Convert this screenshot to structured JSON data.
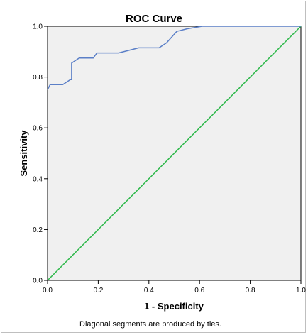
{
  "chart_data": {
    "type": "line",
    "title": "ROC Curve",
    "xlabel": "1 - Specificity",
    "ylabel": "Sensitivity",
    "xlim": [
      0.0,
      1.0
    ],
    "ylim": [
      0.0,
      1.0
    ],
    "x_ticks": [
      "0.0",
      "0.2",
      "0.4",
      "0.6",
      "0.8",
      "1.0"
    ],
    "y_ticks": [
      "0.0",
      "0.2",
      "0.4",
      "0.6",
      "0.8",
      "1.0"
    ],
    "grid": false,
    "legend": "none",
    "series": [
      {
        "color": "#5b7fc7",
        "points": [
          [
            0.0,
            0.75
          ],
          [
            0.01,
            0.77
          ],
          [
            0.06,
            0.77
          ],
          [
            0.09,
            0.79
          ],
          [
            0.095,
            0.79
          ],
          [
            0.095,
            0.855
          ],
          [
            0.125,
            0.875
          ],
          [
            0.18,
            0.875
          ],
          [
            0.195,
            0.895
          ],
          [
            0.28,
            0.895
          ],
          [
            0.36,
            0.915
          ],
          [
            0.44,
            0.915
          ],
          [
            0.47,
            0.935
          ],
          [
            0.51,
            0.98
          ],
          [
            0.55,
            0.99
          ],
          [
            0.61,
            1.0
          ],
          [
            1.0,
            1.0
          ]
        ]
      },
      {
        "color": "#2db84a",
        "points": [
          [
            0.0,
            0.0
          ],
          [
            1.0,
            1.0
          ]
        ]
      }
    ],
    "footnote": "Diagonal segments are produced by ties."
  },
  "colors": {
    "plot_background": "#f0f0f0",
    "axis": "#000000"
  }
}
